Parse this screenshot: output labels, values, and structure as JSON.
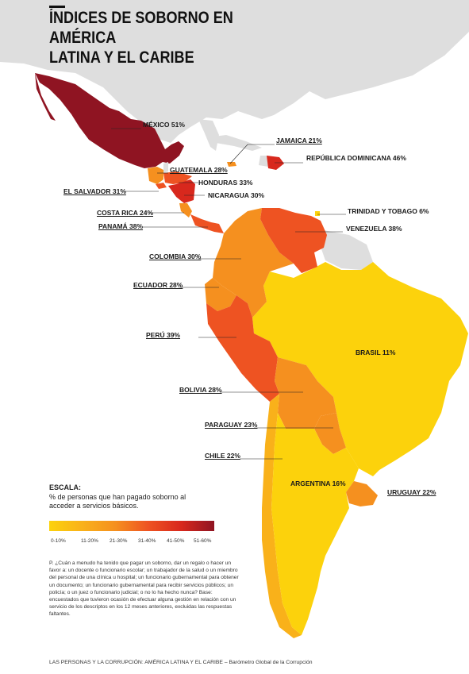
{
  "title_line1": "ÍNDICES DE SOBORNO EN AMÉRICA",
  "title_line2": "LATINA Y EL CARIBE",
  "colors": {
    "land_gray": "#dedede",
    "c0_10": "#fcd20c",
    "c11_20": "#f9b11a",
    "c21_30": "#f5901f",
    "c31_40": "#ee5322",
    "c41_50": "#d8281d",
    "c51_60": "#8f1422"
  },
  "countries": {
    "mexico": "MÉXICO 51%",
    "jamaica": "JAMAICA 21%",
    "rep_dominicana": "REPÚBLICA DOMINICANA 46%",
    "guatemala": "GUATEMALA 28%",
    "honduras": "HONDURAS 33%",
    "el_salvador": "EL SALVADOR 31%",
    "nicaragua": "NICARAGUA 30%",
    "costa_rica": "COSTA RICA 24%",
    "trinidad": "TRINIDAD Y TOBAGO 6%",
    "panama": "PANAMÁ 38%",
    "venezuela": "VENEZUELA 38%",
    "colombia": "COLOMBIA 30%",
    "ecuador": "ECUADOR 28%",
    "peru": "PERÚ 39%",
    "brasil": "BRASIL 11%",
    "bolivia": "BOLIVIA 28%",
    "paraguay": "PARAGUAY 23%",
    "chile": "CHILE 22%",
    "argentina": "ARGENTINA 16%",
    "uruguay": "URUGUAY 22%"
  },
  "scale": {
    "title": "ESCALA:",
    "description": "% de personas que han pagado soborno al acceder a servicios básicos.",
    "ranges": [
      "0-10%",
      "11-20%",
      "21-30%",
      "31-40%",
      "41-50%",
      "51-60%"
    ]
  },
  "note": "P. ¿Cuán a menudo ha tenido que pagar un soborno, dar un regalo o hacer un favor a: un docente o funcionario escolar; un trabajador de la salud o un miembro del personal de una clínica u hospital; un funcionario gubernamental para obtener un documento; un funcionario gubernamental para recibir servicios públicos; un policía; o un juez o funcionario judicial; o no lo ha hecho nunca? Base: encuestados que tuvieron ocasión de efectuar alguna gestión en relación con un servicio de los descriptos en los 12 meses anteriores, excluidas las respuestas faltantes.",
  "footer": "LAS PERSONAS Y LA CORRUPCIÓN: AMÉRICA LATINA Y EL CARIBE – Barómetro Global de la Corrupción"
}
